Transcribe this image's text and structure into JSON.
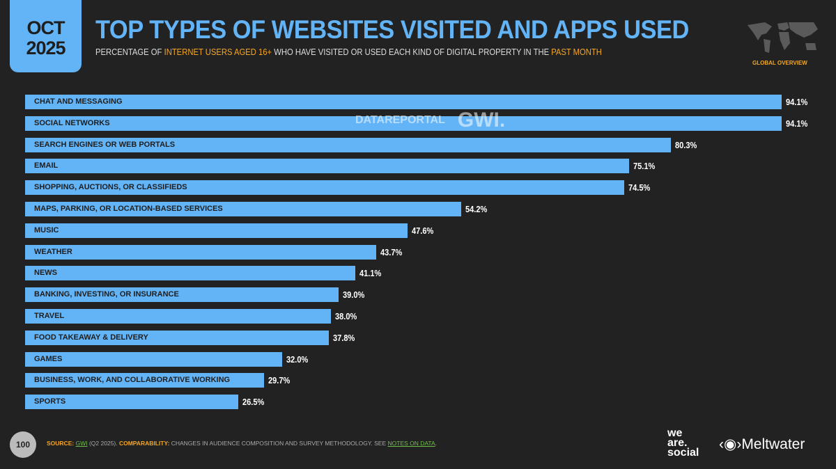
{
  "header": {
    "month": "OCT",
    "year": "2025",
    "title": "TOP TYPES OF WEBSITES VISITED AND APPS USED",
    "subtitle_parts": [
      "PERCENTAGE OF ",
      "INTERNET USERS AGED 16+",
      " WHO HAVE VISITED OR USED EACH KIND OF DIGITAL PROPERTY IN THE ",
      "PAST MONTH"
    ],
    "region": "GLOBAL OVERVIEW"
  },
  "watermark": {
    "left": "DATAREPORTAL",
    "right": "GWI."
  },
  "chart_data": {
    "type": "bar",
    "orientation": "horizontal",
    "value_suffix": "%",
    "categories": [
      "CHAT AND MESSAGING",
      "SOCIAL NETWORKS",
      "SEARCH ENGINES OR WEB PORTALS",
      "EMAIL",
      "SHOPPING, AUCTIONS, OR CLASSIFIEDS",
      "MAPS, PARKING, OR LOCATION-BASED SERVICES",
      "MUSIC",
      "WEATHER",
      "NEWS",
      "BANKING, INVESTING, OR INSURANCE",
      "TRAVEL",
      "FOOD TAKEAWAY & DELIVERY",
      "GAMES",
      "BUSINESS, WORK, AND COLLABORATIVE WORKING",
      "SPORTS"
    ],
    "values": [
      94.1,
      94.1,
      80.3,
      75.1,
      74.5,
      54.2,
      47.6,
      43.7,
      41.1,
      39.0,
      38.0,
      37.8,
      32.0,
      29.7,
      26.5
    ],
    "labels": [
      "94.1%",
      "94.1%",
      "80.3%",
      "75.1%",
      "74.5%",
      "54.2%",
      "47.6%",
      "43.7%",
      "41.1%",
      "39.0%",
      "38.0%",
      "37.8%",
      "32.0%",
      "29.7%",
      "26.5%"
    ],
    "bar_color": "#63b4f7"
  },
  "footer": {
    "page": "100",
    "source_label": "SOURCE:",
    "source": "GWI",
    "source_period": " (Q2 2025). ",
    "comp_label": "COMPARABILITY:",
    "comp_text": " CHANGES IN AUDIENCE COMPOSITION AND SURVEY METHODOLOGY. SEE ",
    "notes_link": "NOTES ON DATA",
    "notes_end": "."
  },
  "logos": {
    "was1": "we",
    "was2": "are.",
    "was3": "social",
    "meltwater": "Meltwater"
  }
}
